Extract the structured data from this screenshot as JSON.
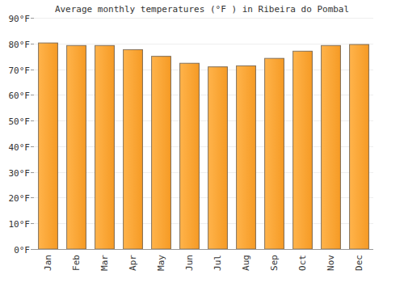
{
  "chart_data": {
    "type": "bar",
    "title": "Average monthly temperatures (°F ) in Ribeira do Pombal",
    "categories": [
      "Jan",
      "Feb",
      "Mar",
      "Apr",
      "May",
      "Jun",
      "Jul",
      "Aug",
      "Sep",
      "Oct",
      "Nov",
      "Dec"
    ],
    "values": [
      80.2,
      79.2,
      79.2,
      77.6,
      75.0,
      72.3,
      70.9,
      71.3,
      74.2,
      77.0,
      79.2,
      79.6
    ],
    "color": "#ffa62b",
    "ylim": [
      0,
      90
    ],
    "yticks": [
      {
        "value": 0,
        "label": "0°F"
      },
      {
        "value": 10,
        "label": "10°F"
      },
      {
        "value": 20,
        "label": "20°F"
      },
      {
        "value": 30,
        "label": "30°F"
      },
      {
        "value": 40,
        "label": "40°F"
      },
      {
        "value": 50,
        "label": "50°F"
      },
      {
        "value": 60,
        "label": "60°F"
      },
      {
        "value": 70,
        "label": "70°F"
      },
      {
        "value": 80,
        "label": "80°F"
      },
      {
        "value": 90,
        "label": "90°F"
      }
    ],
    "grid": true
  }
}
